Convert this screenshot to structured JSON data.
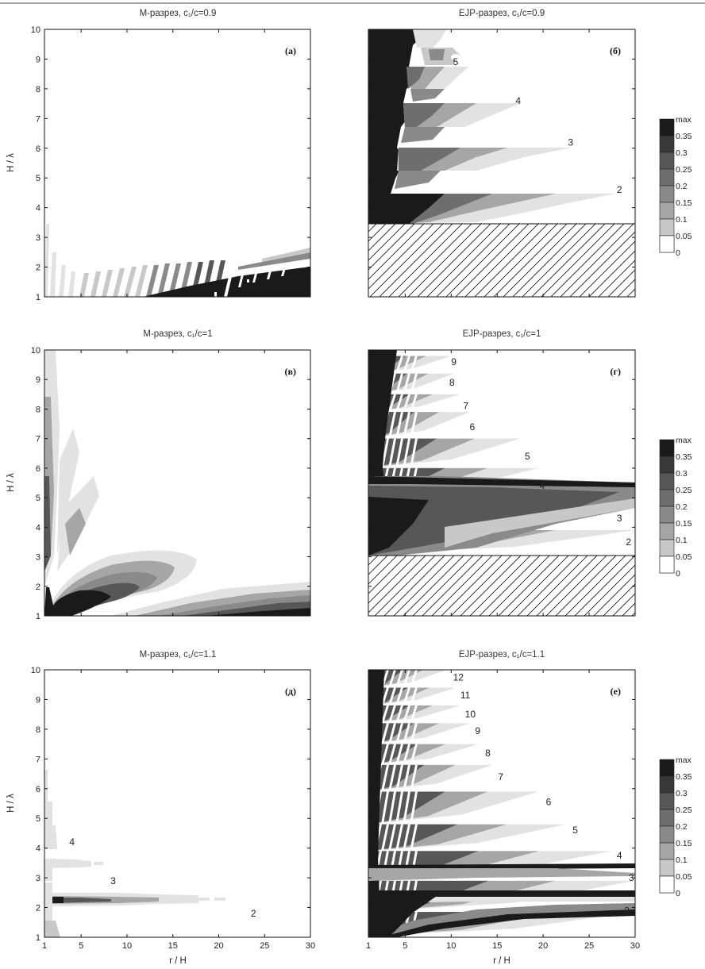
{
  "header_text": "",
  "chart_data": [
    {
      "type": "heatmap",
      "id": "a",
      "title": "M-разрез, c₁/c=0.9",
      "tag": "(а)",
      "xlabel": "",
      "ylabel": "H / λ",
      "xlim": [
        1,
        30
      ],
      "ylim": [
        1,
        10
      ],
      "xticks": [
        "1",
        "5",
        "10",
        "15",
        "20",
        "25",
        "30"
      ],
      "yticks": [
        "1",
        "2",
        "3",
        "4",
        "5",
        "6",
        "7",
        "8",
        "9",
        "10"
      ],
      "mode_labels": [],
      "hatched_region": null
    },
    {
      "type": "heatmap",
      "id": "b",
      "title": "EJP-разрез, c₁/c=0.9",
      "tag": "(б)",
      "xlabel": "",
      "ylabel": "",
      "xlim": [
        1,
        30
      ],
      "ylim": [
        1,
        10
      ],
      "xticks": [
        "1",
        "5",
        "10",
        "15",
        "20",
        "25",
        "30"
      ],
      "yticks": [
        "1",
        "2",
        "3",
        "4",
        "5",
        "6",
        "7",
        "8",
        "9",
        "10"
      ],
      "mode_labels": [
        {
          "text": "5",
          "x": 10.2,
          "y": 8.9
        },
        {
          "text": "4",
          "x": 17.0,
          "y": 7.6
        },
        {
          "text": "3",
          "x": 22.7,
          "y": 6.2
        },
        {
          "text": "2",
          "x": 28.0,
          "y": 4.6
        }
      ],
      "hatched_region": [
        1,
        30,
        1,
        2.8
      ]
    },
    {
      "type": "heatmap",
      "id": "v",
      "title": "M-разрез, c₁/c=1",
      "tag": "(в)",
      "xlabel": "",
      "ylabel": "H / λ",
      "xlim": [
        1,
        30
      ],
      "ylim": [
        1,
        10
      ],
      "xticks": [
        "1",
        "5",
        "10",
        "15",
        "20",
        "25",
        "30"
      ],
      "yticks": [
        "1",
        "2",
        "3",
        "4",
        "5",
        "6",
        "7",
        "8",
        "9",
        "10"
      ],
      "mode_labels": [],
      "hatched_region": null
    },
    {
      "type": "heatmap",
      "id": "g",
      "title": "EJP-разрез, c₁/c=1",
      "tag": "(г)",
      "xlabel": "",
      "ylabel": "",
      "xlim": [
        1,
        30
      ],
      "ylim": [
        1,
        10
      ],
      "xticks": [
        "1",
        "5",
        "10",
        "15",
        "20",
        "25",
        "30"
      ],
      "yticks": [
        "1",
        "2",
        "3",
        "4",
        "5",
        "6",
        "7",
        "8",
        "9",
        "10"
      ],
      "mode_labels": [
        {
          "text": "9",
          "x": 10.0,
          "y": 9.6
        },
        {
          "text": "8",
          "x": 9.8,
          "y": 8.9
        },
        {
          "text": "7",
          "x": 11.3,
          "y": 8.1
        },
        {
          "text": "6",
          "x": 12.0,
          "y": 7.4
        },
        {
          "text": "5",
          "x": 18.0,
          "y": 6.4
        },
        {
          "text": "4",
          "x": 19.6,
          "y": 5.4
        },
        {
          "text": "3",
          "x": 28.0,
          "y": 4.3
        },
        {
          "text": "2",
          "x": 29.0,
          "y": 3.5
        }
      ],
      "hatched_region": [
        1,
        30,
        1,
        2.2
      ]
    },
    {
      "type": "heatmap",
      "id": "d",
      "title": "M-разрез, c₁/c=1.1",
      "tag": "(д)",
      "xlabel": "r / H",
      "ylabel": "H / λ",
      "xlim": [
        1,
        30
      ],
      "ylim": [
        1,
        10
      ],
      "xticks": [
        "1",
        "5",
        "10",
        "15",
        "20",
        "25",
        "30"
      ],
      "yticks": [
        "1",
        "2",
        "3",
        "4",
        "5",
        "6",
        "7",
        "8",
        "9",
        "10"
      ],
      "mode_labels": [
        {
          "text": "4",
          "x": 3.7,
          "y": 4.2
        },
        {
          "text": "3",
          "x": 8.2,
          "y": 2.9
        },
        {
          "text": "2",
          "x": 23.5,
          "y": 1.8
        }
      ],
      "hatched_region": null
    },
    {
      "type": "heatmap",
      "id": "e",
      "title": "EJP-разрез, c₁/c=1.1",
      "tag": "(е)",
      "xlabel": "r / H",
      "ylabel": "",
      "xlim": [
        1,
        30
      ],
      "ylim": [
        1,
        10
      ],
      "xticks": [
        "1",
        "5",
        "10",
        "15",
        "20",
        "25",
        "30"
      ],
      "yticks": [
        "1",
        "2",
        "3",
        "4",
        "5",
        "6",
        "7",
        "8",
        "9",
        "10"
      ],
      "mode_labels": [
        {
          "text": "12",
          "x": 10.2,
          "y": 9.75
        },
        {
          "text": "11",
          "x": 11.0,
          "y": 9.15
        },
        {
          "text": "10",
          "x": 11.5,
          "y": 8.5
        },
        {
          "text": "9",
          "x": 12.6,
          "y": 7.95
        },
        {
          "text": "8",
          "x": 13.7,
          "y": 7.2
        },
        {
          "text": "7",
          "x": 15.1,
          "y": 6.4
        },
        {
          "text": "6",
          "x": 20.3,
          "y": 5.55
        },
        {
          "text": "5",
          "x": 23.2,
          "y": 4.6
        },
        {
          "text": "4",
          "x": 28.0,
          "y": 3.75
        },
        {
          "text": "3",
          "x": 29.3,
          "y": 3.0
        },
        {
          "text": "2",
          "x": 28.8,
          "y": 1.9
        }
      ],
      "hatched_region": null
    }
  ],
  "colorbar": {
    "labels": [
      "max",
      "0.35",
      "0.3",
      "0.25",
      "0.2",
      "0.15",
      "0.1",
      "0.05",
      "0"
    ],
    "colors": [
      "#1a1a1a",
      "#383838",
      "#575757",
      "#6e6e6e",
      "#8a8a8a",
      "#a6a6a6",
      "#c8c8c8",
      "#e2e2e2",
      "#ffffff"
    ]
  }
}
